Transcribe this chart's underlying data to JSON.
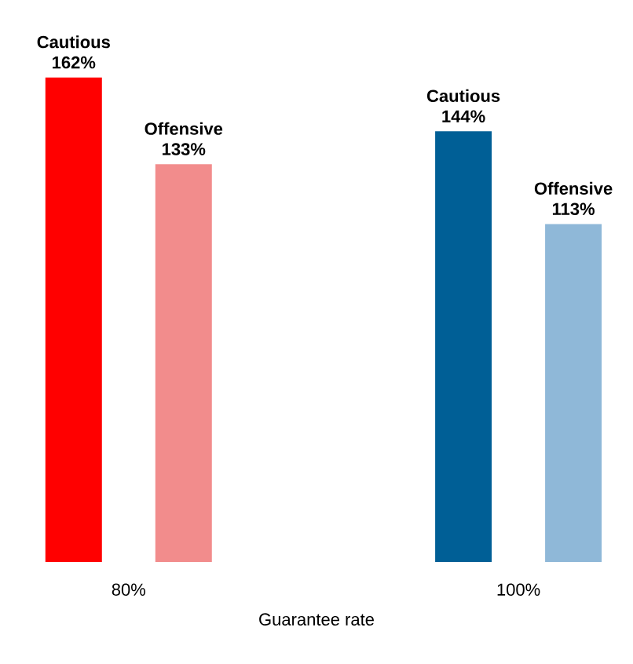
{
  "chart_data": {
    "type": "bar",
    "xlabel": "Guarantee rate",
    "categories": [
      "80%",
      "100%"
    ],
    "series": [
      {
        "name": "Cautious",
        "colors": [
          "#ff0000",
          "#005f96"
        ],
        "values": [
          162,
          144
        ],
        "value_labels": [
          "162%",
          "144%"
        ]
      },
      {
        "name": "Offensive",
        "colors": [
          "#f28c8c",
          "#8fb8d8"
        ],
        "values": [
          133,
          113
        ],
        "value_labels": [
          "133%",
          "113%"
        ]
      }
    ]
  }
}
